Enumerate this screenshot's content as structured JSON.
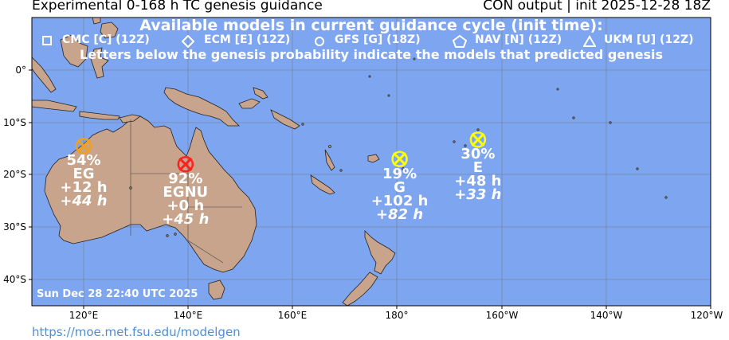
{
  "title": {
    "left": "Experimental 0-168 h TC genesis guidance",
    "right": "CON output | init 2025-12-28 18Z"
  },
  "banner": {
    "line1": "Available models in current guidance cycle (init time):",
    "line2": "Letters below the genesis probability indicate the models that predicted genesis"
  },
  "legend": [
    {
      "icon": "square",
      "label": "CMC [C] (12Z)"
    },
    {
      "icon": "diamond",
      "label": "ECM [E] (12Z)"
    },
    {
      "icon": "circle",
      "label": "GFS [G] (18Z)"
    },
    {
      "icon": "pentagon",
      "label": "NAV [N] (12Z)"
    },
    {
      "icon": "triangle",
      "label": "UKM [U] (12Z)"
    }
  ],
  "systems": [
    {
      "lon": 120.0,
      "lat": -14.5,
      "color": "#f0a020",
      "prob": "54%",
      "models": "EG",
      "lead": "+12 h",
      "lead2": "+44 h"
    },
    {
      "lon": 139.5,
      "lat": -18.0,
      "color": "#ff2020",
      "prob": "92%",
      "models": "EGNU",
      "lead": "+0 h",
      "lead2": "+45 h"
    },
    {
      "lon": 180.5,
      "lat": -17.0,
      "color": "#ffff00",
      "prob": "19%",
      "models": "G",
      "lead": "+102 h",
      "lead2": "+82 h"
    },
    {
      "lon": -164.5,
      "lat": -13.3,
      "color": "#ffff00",
      "prob": "30%",
      "models": "E",
      "lead": "+48 h",
      "lead2": "+33 h"
    }
  ],
  "axes": {
    "lon_labels": [
      "120°E",
      "140°E",
      "160°E",
      "180°",
      "160°W",
      "140°W",
      "120°W"
    ],
    "lat_labels": [
      "0°",
      "10°S",
      "20°S",
      "30°S",
      "40°S"
    ]
  },
  "colors": {
    "ocean": "#7ea6f0",
    "land": "#c8a48c",
    "grid": "#777777"
  },
  "timestamp": "Sun Dec 28 22:40 UTC 2025",
  "credit": "https://moe.met.fsu.edu/modelgen"
}
